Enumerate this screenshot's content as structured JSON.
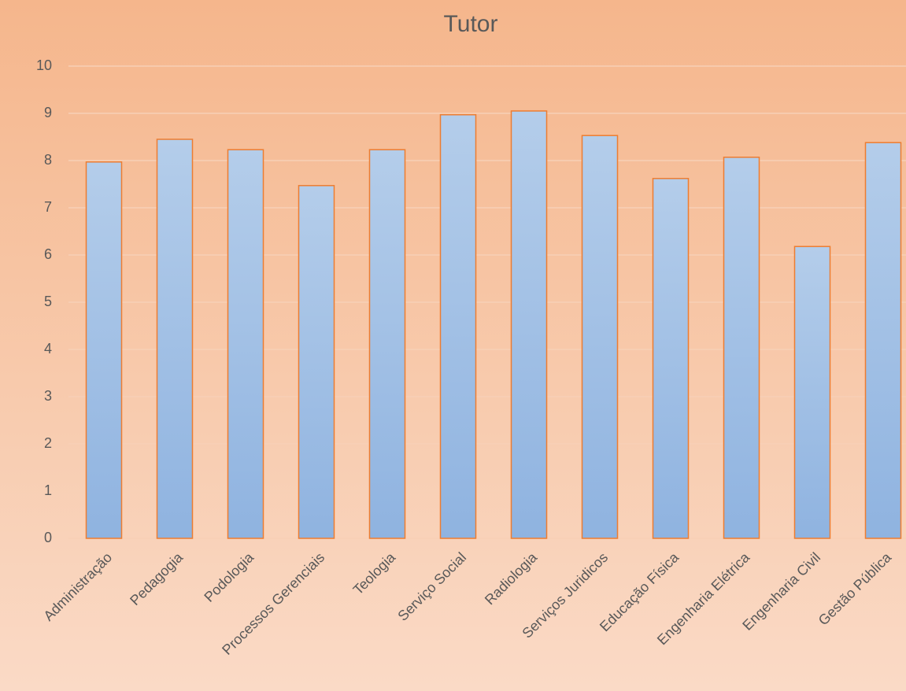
{
  "chart_data": {
    "type": "bar",
    "title": "Tutor",
    "categories": [
      "Administração",
      "Pedagogia",
      "Podologia",
      "Processos Gerenciais",
      "Teologia",
      "Serviço Social",
      "Radiologia",
      "Serviços Juridicos",
      "Educação Física",
      "Engenharia Elétrica",
      "Engenharia Civil",
      "Gestão Pública"
    ],
    "values": [
      7.97,
      8.45,
      8.23,
      7.47,
      8.23,
      8.97,
      9.05,
      8.53,
      7.62,
      8.07,
      6.18,
      8.38
    ],
    "color": "#9dbde5",
    "ylim": [
      0,
      10
    ],
    "yticks": [
      0,
      1,
      2,
      3,
      4,
      5,
      6,
      7,
      8,
      9,
      10
    ],
    "grid": true
  }
}
